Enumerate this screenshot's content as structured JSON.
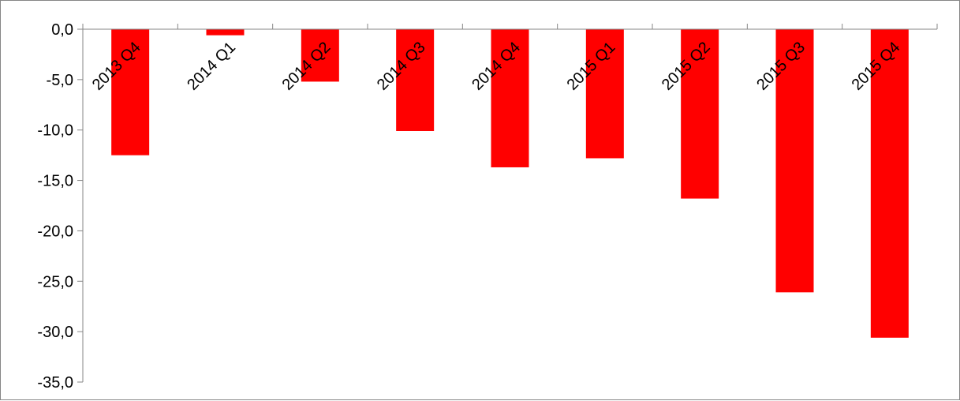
{
  "chart_data": {
    "type": "bar",
    "title": "",
    "xlabel": "",
    "ylabel": "",
    "categories": [
      "2013 Q4",
      "2014 Q1",
      "2014 Q2",
      "2014 Q3",
      "2014 Q4",
      "2015 Q1",
      "2015 Q2",
      "2015 Q3",
      "2015 Q4"
    ],
    "values": [
      -12.5,
      -0.6,
      -5.2,
      -10.1,
      -13.7,
      -12.8,
      -16.8,
      -26.1,
      -30.6
    ],
    "ylim": [
      -35,
      0
    ],
    "yticks": [
      0,
      -5,
      -10,
      -15,
      -20,
      -25,
      -30,
      -35
    ],
    "ytick_labels": [
      "0,0",
      "-5,0",
      "-10,0",
      "-15,0",
      "-20,0",
      "-25,0",
      "-30,0",
      "-35,0"
    ],
    "grid": false,
    "legend": "none",
    "bar_color": "#ff0000",
    "axis_color": "#868686"
  }
}
